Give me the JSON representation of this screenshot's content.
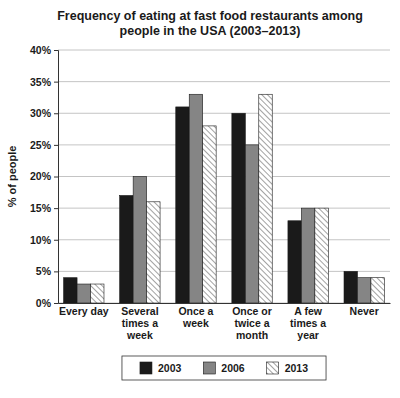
{
  "chart_data": {
    "type": "bar",
    "title": "Frequency of eating at fast food restaurants among people in the USA (2003–2013)",
    "y_label": "% of people",
    "categories": [
      "Every day",
      "Several times a week",
      "Once a week",
      "Once or twice a month",
      "A few times a year",
      "Never"
    ],
    "series": [
      {
        "name": "2003",
        "color": "#1a1a1a",
        "values": [
          4,
          17,
          31,
          30,
          13,
          5
        ]
      },
      {
        "name": "2006",
        "color": "#858585",
        "values": [
          3,
          20,
          33,
          25,
          15,
          4
        ]
      },
      {
        "name": "2013",
        "color": "#8a8a8a",
        "line_style": "hatched",
        "values": [
          3,
          16,
          28,
          33,
          15,
          4
        ]
      }
    ],
    "ylim": [
      0,
      40
    ],
    "yticks": [
      {
        "value": 0,
        "label": "0%"
      },
      {
        "value": 5,
        "label": "5%"
      },
      {
        "value": 10,
        "label": "10%"
      },
      {
        "value": 15,
        "label": "15%"
      },
      {
        "value": 20,
        "label": "20%"
      },
      {
        "value": 25,
        "label": "25%"
      },
      {
        "value": 30,
        "label": "30%"
      },
      {
        "value": 35,
        "label": "35%"
      },
      {
        "value": 40,
        "label": "40%"
      }
    ],
    "grid": true,
    "legend": "bottom"
  }
}
